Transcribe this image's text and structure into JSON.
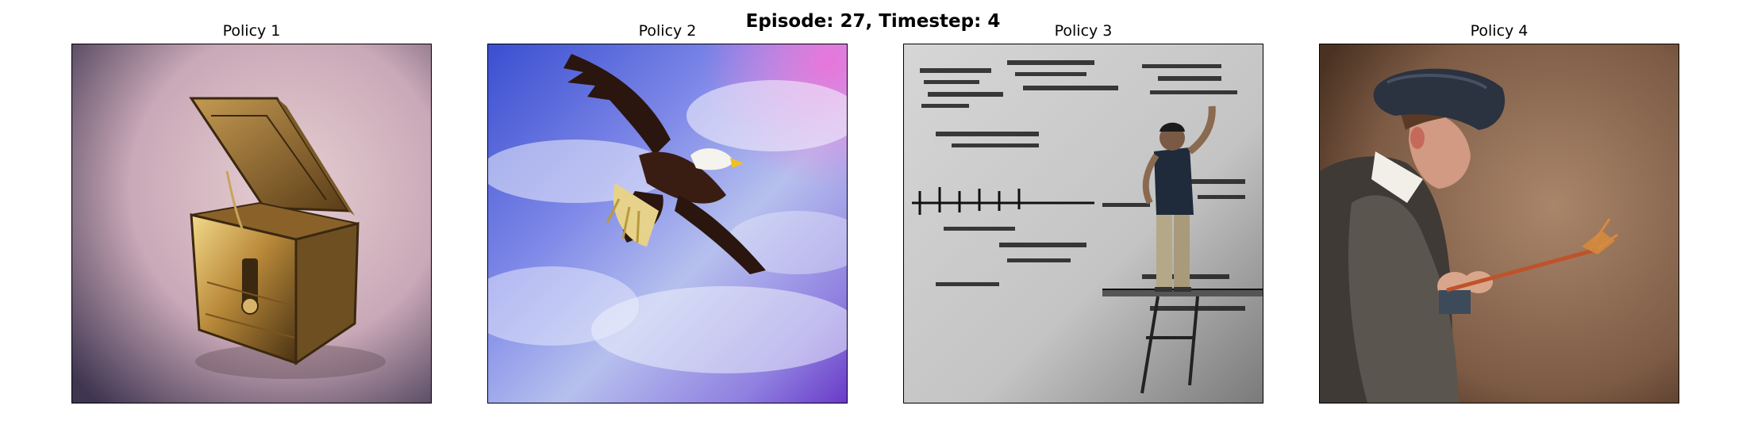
{
  "figure": {
    "title": "Episode: 27, Timestep: 4"
  },
  "panels": [
    {
      "title": "Policy 1",
      "image": "treasure-chest-image"
    },
    {
      "title": "Policy 2",
      "image": "bald-eagle-image"
    },
    {
      "title": "Policy 3",
      "image": "man-painting-wall-image"
    },
    {
      "title": "Policy 4",
      "image": "painter-portrait-image"
    }
  ]
}
